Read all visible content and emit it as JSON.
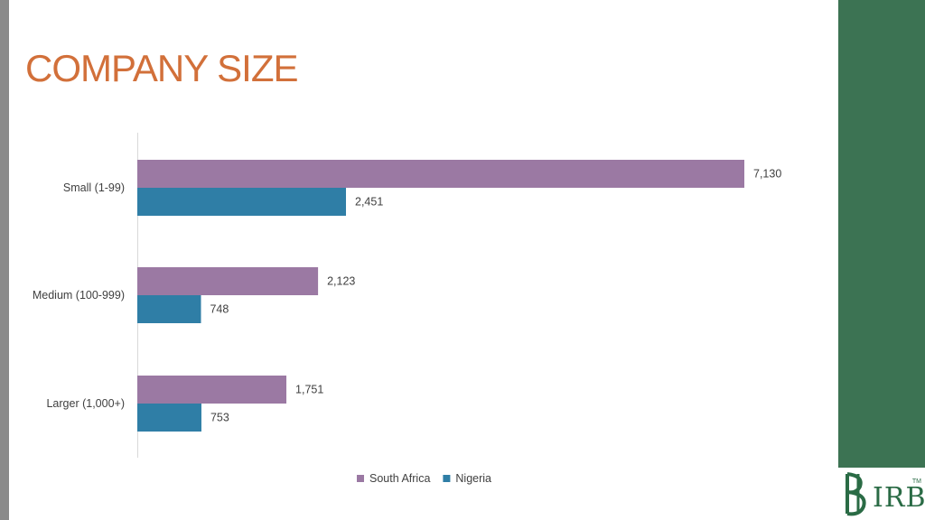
{
  "slide": {
    "title": "COMPANY SIZE"
  },
  "logo": {
    "text": "IRB",
    "tm": "TM"
  },
  "colors": {
    "title": "#d2703a",
    "panel": "#3c7353",
    "series": [
      "#9b79a3",
      "#2f7ea6"
    ]
  },
  "chart_data": {
    "type": "bar",
    "orientation": "horizontal",
    "categories": [
      "Small (1-99)",
      "Medium (100-999)",
      "Larger (1,000+)"
    ],
    "series": [
      {
        "name": "South Africa",
        "values": [
          7130,
          2123,
          1751
        ],
        "labels": [
          "7,130",
          "2,123",
          "1,751"
        ]
      },
      {
        "name": "Nigeria",
        "values": [
          2451,
          748,
          753
        ],
        "labels": [
          "2,451",
          "748",
          "753"
        ]
      }
    ],
    "xlim": [
      0,
      7130
    ],
    "grid": false,
    "legend": "bottom",
    "data_labels": true
  }
}
